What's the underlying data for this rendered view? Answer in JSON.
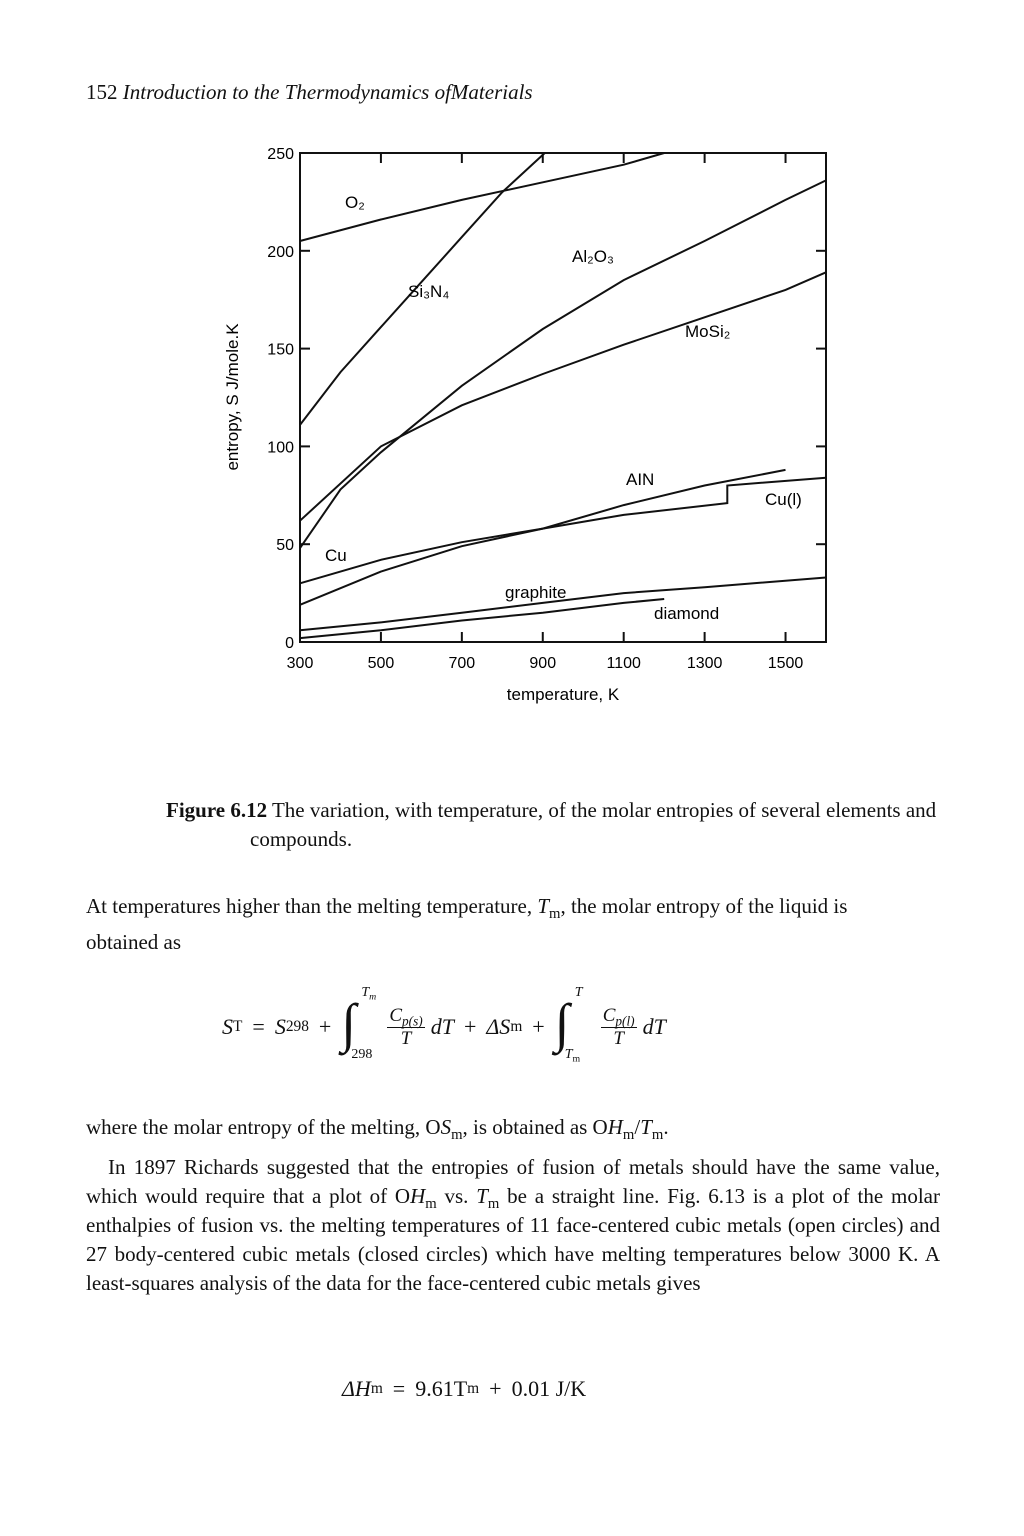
{
  "header": {
    "page_number": "152",
    "title": "Introduction to the Thermodynamics ofMaterials"
  },
  "chart_data": {
    "type": "line",
    "xlabel": "temperature, K",
    "ylabel": "entropy, S J/mole.K",
    "xlim": [
      300,
      1600
    ],
    "ylim": [
      0,
      250
    ],
    "xticks": [
      300,
      500,
      700,
      900,
      1100,
      1300,
      1500
    ],
    "yticks": [
      0,
      50,
      100,
      150,
      200,
      250
    ],
    "series": [
      {
        "name": "O₂",
        "color": "#111111",
        "x": [
          300,
          500,
          700,
          900,
          1100,
          1200
        ],
        "values": [
          205,
          216,
          226,
          235,
          244,
          250
        ]
      },
      {
        "name": "Si₃N₄",
        "color": "#111111",
        "x": [
          300,
          400,
          500,
          600,
          700,
          800,
          905
        ],
        "values": [
          111,
          138,
          161,
          184,
          207,
          230,
          250
        ]
      },
      {
        "name": "Al₂O₃",
        "color": "#111111",
        "x": [
          300,
          400,
          500,
          700,
          900,
          1100,
          1300,
          1500,
          1600
        ],
        "values": [
          48,
          78,
          97,
          131,
          160,
          185,
          205,
          226,
          236
        ]
      },
      {
        "name": "MoSi₂",
        "color": "#111111",
        "x": [
          300,
          500,
          700,
          900,
          1100,
          1300,
          1500,
          1600
        ],
        "values": [
          62,
          100,
          121,
          137,
          152,
          166,
          180,
          189
        ]
      },
      {
        "name": "AIN",
        "color": "#111111",
        "x": [
          300,
          500,
          700,
          900,
          1100,
          1300,
          1500
        ],
        "values": [
          19,
          36,
          49,
          58,
          70,
          80,
          88
        ]
      },
      {
        "name": "Cu",
        "color": "#111111",
        "x": [
          300,
          500,
          700,
          900,
          1100,
          1356,
          1356,
          1600
        ],
        "values": [
          30,
          42,
          51,
          58,
          65,
          71,
          80,
          84
        ]
      },
      {
        "name": "graphite",
        "color": "#111111",
        "x": [
          300,
          500,
          700,
          900,
          1100,
          1300,
          1600
        ],
        "values": [
          6,
          10,
          15,
          20,
          25,
          28,
          33
        ]
      },
      {
        "name": "diamond",
        "color": "#111111",
        "x": [
          300,
          500,
          700,
          900,
          1100,
          1200
        ],
        "values": [
          2,
          6,
          11,
          15,
          20,
          22
        ]
      }
    ],
    "annotations": [
      "Cu(l)"
    ]
  },
  "caption": {
    "label": "Figure 6.12",
    "text": "The variation, with temperature, of the molar entropies of several elements and compounds."
  },
  "paragraph_1": [
    "At temperatures higher than the melting temperature, ",
    "T",
    "m",
    ", the molar entropy of the liquid is obtained as"
  ],
  "equation_1": {
    "lhs": "S",
    "lhs_sub": "T",
    "equals": "=",
    "term_1": "S",
    "term_1_sub": "298",
    "plus": "+",
    "integral_sign": "∫",
    "integral_1": {
      "upper": "T",
      "upper_sub": "m",
      "lower": "298",
      "numerator": "C",
      "numerator_sub": "p(s)",
      "denominator": "T",
      "differential": "dT"
    },
    "term_2": "ΔS",
    "term_2_sub": "m",
    "integral_2": {
      "upper": "T",
      "lower": "T",
      "lower_sub": "m",
      "numerator": "C",
      "numerator_sub": "p(l)",
      "denominator": "T",
      "differential": "dT"
    }
  },
  "paragraph_2": [
    "where the molar entropy of the melting, O",
    "S",
    "m",
    ", is obtained as O",
    "H",
    "m",
    "/",
    "T",
    "m",
    "."
  ],
  "paragraph_3": [
    "In 1897 Richards suggested that the entropies of fusion of metals should have the same value, which would require that a plot of O",
    "H",
    "m",
    " vs. ",
    "T",
    "m",
    " be a straight line. Fig. 6.13 is a plot of the molar enthalpies of fusion vs. the melting temperatures of 11 face-centered cubic metals (open circles) and 27 body-centered cubic metals (closed circles) which have melting temperatures below 3000 K. A least-squares analysis of the data for the  face-centered cubic metals gives"
  ],
  "equation_2": {
    "lhs": "ΔH",
    "lhs_sub": "m",
    "equals": "=",
    "coefficient": "9.61T",
    "coefficient_sub": "m",
    "plus": "+",
    "rest": "0.01 J/K"
  }
}
